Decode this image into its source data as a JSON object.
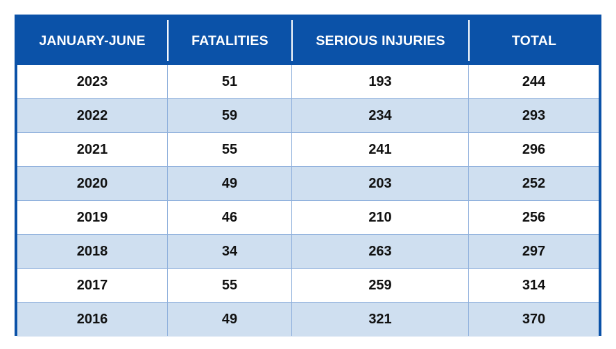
{
  "chart_data": {
    "type": "table",
    "columns": [
      "JANUARY-JUNE",
      "FATALITIES",
      "SERIOUS INJURIES",
      "TOTAL"
    ],
    "rows": [
      [
        "2023",
        "51",
        "193",
        "244"
      ],
      [
        "2022",
        "59",
        "234",
        "293"
      ],
      [
        "2021",
        "55",
        "241",
        "296"
      ],
      [
        "2020",
        "49",
        "203",
        "252"
      ],
      [
        "2019",
        "46",
        "210",
        "256"
      ],
      [
        "2018",
        "34",
        "263",
        "297"
      ],
      [
        "2017",
        "55",
        "259",
        "314"
      ],
      [
        "2016",
        "49",
        "321",
        "370"
      ]
    ]
  },
  "colors": {
    "header_bg": "#0b52a8",
    "header_text": "#ffffff",
    "row_alt_bg": "#cfdff0",
    "row_bg": "#ffffff",
    "grid_line": "#8fb0dc"
  }
}
